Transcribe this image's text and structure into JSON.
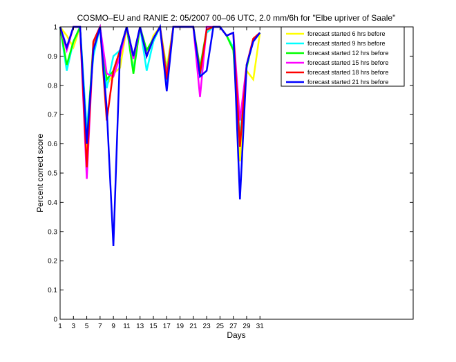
{
  "chart_data": {
    "type": "line",
    "title": "COSMO–EU and RANIE 2: 05/2007 00–06 UTC, 2.0 mm/6h for \"Elbe upriver of Saale\"",
    "xlabel": "Days",
    "ylabel": "Percent correct score",
    "xlim": [
      1,
      54
    ],
    "ylim": [
      0,
      1
    ],
    "xticks": [
      "1",
      "3",
      "5",
      "7",
      "9",
      "11",
      "13",
      "15",
      "17",
      "19",
      "21",
      "23",
      "25",
      "27",
      "29",
      "31"
    ],
    "xtick_values": [
      1,
      3,
      5,
      7,
      9,
      11,
      13,
      15,
      17,
      19,
      21,
      23,
      25,
      27,
      29,
      31
    ],
    "yticks": [
      "0",
      "0.1",
      "0.2",
      "0.3",
      "0.4",
      "0.5",
      "0.6",
      "0.7",
      "0.8",
      "0.9",
      "1"
    ],
    "ytick_values": [
      0,
      0.1,
      0.2,
      0.3,
      0.4,
      0.5,
      0.6,
      0.7,
      0.8,
      0.9,
      1
    ],
    "legend_position": "top-right",
    "x": [
      1,
      2,
      3,
      4,
      5,
      6,
      7,
      8,
      9,
      10,
      11,
      12,
      13,
      14,
      15,
      16,
      17,
      18,
      19,
      20,
      21,
      22,
      23,
      24,
      25,
      26,
      27,
      28,
      29,
      30,
      31
    ],
    "series": [
      {
        "name": "forecast started 6 hrs before",
        "color": "#ffff00",
        "values": [
          1,
          0.97,
          0.93,
          1,
          0.55,
          0.94,
          1,
          0.8,
          0.84,
          0.86,
          1,
          0.86,
          1,
          0.9,
          0.97,
          1,
          0.86,
          1,
          1,
          1,
          1,
          0.85,
          0.99,
          1,
          1,
          0.97,
          0.93,
          0.54,
          0.85,
          0.82,
          0.98
        ]
      },
      {
        "name": "forecast started 9 hrs before",
        "color": "#00ffff",
        "values": [
          1,
          0.85,
          0.95,
          1,
          0.65,
          0.9,
          1,
          0.79,
          0.9,
          0.92,
          1,
          0.85,
          1,
          0.85,
          0.95,
          1,
          0.8,
          1,
          1,
          1,
          1,
          0.83,
          0.98,
          1,
          1,
          0.97,
          0.93,
          0.62,
          0.87,
          0.95,
          0.98
        ]
      },
      {
        "name": "forecast started 12 hrs before",
        "color": "#00ff00",
        "values": [
          1,
          0.87,
          0.95,
          1,
          0.6,
          0.95,
          1,
          0.82,
          0.85,
          0.92,
          1,
          0.84,
          1,
          0.92,
          0.96,
          1,
          0.84,
          1,
          1,
          1,
          1,
          0.86,
          0.99,
          1,
          1,
          0.97,
          0.92,
          0.6,
          0.86,
          0.96,
          0.98
        ]
      },
      {
        "name": "forecast started 15 hrs before",
        "color": "#ff00ff",
        "values": [
          1,
          0.92,
          1,
          1,
          0.48,
          0.95,
          1,
          0.84,
          0.83,
          0.9,
          1,
          0.89,
          1,
          0.9,
          0.96,
          1,
          0.83,
          1,
          1,
          1,
          1,
          0.76,
          1,
          1,
          1,
          0.97,
          0.98,
          0.68,
          0.87,
          0.96,
          0.98
        ]
      },
      {
        "name": "forecast started 18 hrs before",
        "color": "#ff0000",
        "values": [
          1,
          0.93,
          1,
          1,
          0.52,
          0.95,
          1,
          0.68,
          0.85,
          0.92,
          1,
          0.9,
          1,
          0.9,
          0.96,
          1,
          0.82,
          1,
          1,
          1,
          1,
          0.84,
          0.99,
          1,
          1,
          0.97,
          0.98,
          0.59,
          0.87,
          0.96,
          0.98
        ]
      },
      {
        "name": "forecast started 21 hrs before",
        "color": "#0000ff",
        "values": [
          1,
          0.93,
          1,
          1,
          0.6,
          0.92,
          1,
          0.72,
          0.25,
          0.92,
          1,
          0.9,
          1,
          0.9,
          0.96,
          1,
          0.78,
          1,
          1,
          1,
          1,
          0.83,
          0.85,
          1,
          1,
          0.97,
          0.98,
          0.41,
          0.87,
          0.95,
          0.98
        ]
      }
    ]
  }
}
